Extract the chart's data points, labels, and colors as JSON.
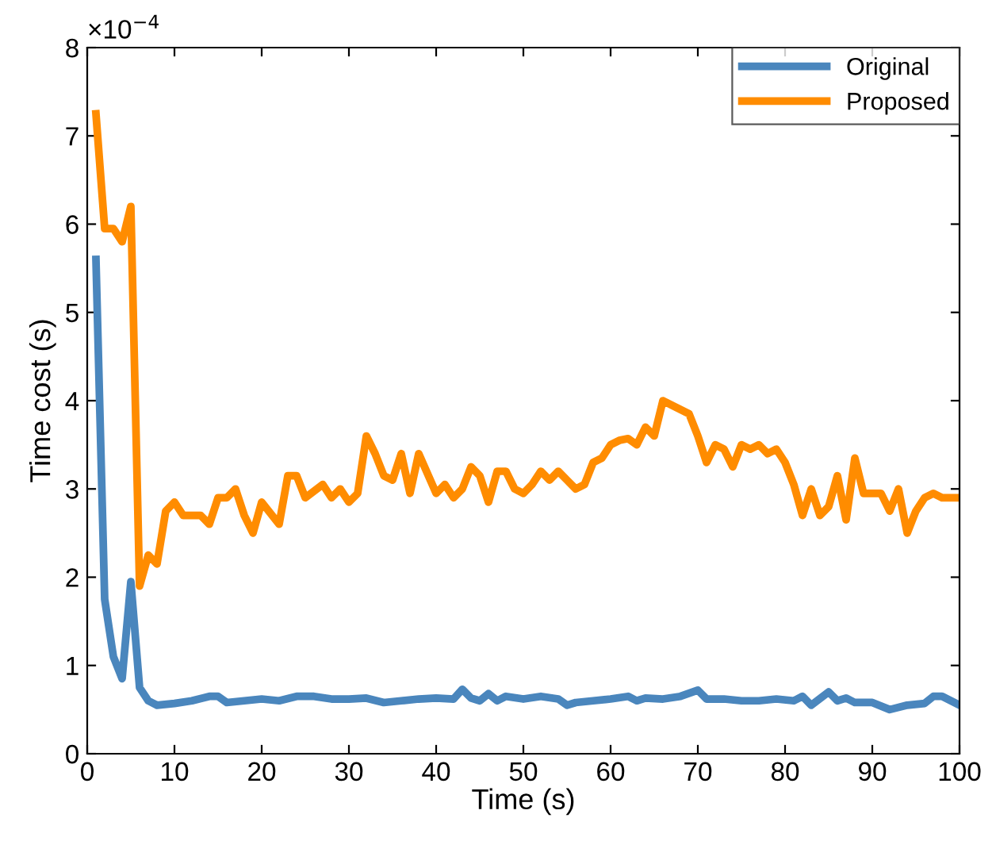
{
  "chart_data": {
    "type": "line",
    "xlabel": "Time (s)",
    "ylabel": "Time cost (s)",
    "annotations": [
      "×10$^{−4}$"
    ],
    "xlim": [
      0,
      100
    ],
    "ylim": [
      0,
      8
    ],
    "xticks": [
      0,
      10,
      20,
      30,
      40,
      50,
      60,
      70,
      80,
      90,
      100
    ],
    "yticks": [
      0,
      1,
      2,
      3,
      4,
      5,
      6,
      7,
      8
    ],
    "grid": false,
    "legend": "top right",
    "marker": "none",
    "line_style": "solid",
    "series": [
      {
        "name": "Original",
        "color": "#4a86bd",
        "x": [
          1,
          2,
          3,
          4,
          5,
          6,
          7,
          8,
          10,
          12,
          14,
          15,
          16,
          18,
          20,
          22,
          24,
          26,
          28,
          30,
          32,
          34,
          36,
          38,
          40,
          42,
          43,
          44,
          45,
          46,
          47,
          48,
          50,
          52,
          54,
          55,
          56,
          58,
          60,
          62,
          63,
          64,
          66,
          68,
          70,
          71,
          73,
          75,
          77,
          79,
          81,
          82,
          83,
          85,
          86,
          87,
          88,
          90,
          92,
          94,
          96,
          97,
          98,
          100
        ],
        "values": [
          5.6,
          1.75,
          1.1,
          0.85,
          1.95,
          0.75,
          0.6,
          0.55,
          0.57,
          0.6,
          0.65,
          0.65,
          0.58,
          0.6,
          0.62,
          0.6,
          0.65,
          0.65,
          0.62,
          0.62,
          0.63,
          0.58,
          0.6,
          0.62,
          0.63,
          0.62,
          0.73,
          0.63,
          0.6,
          0.68,
          0.6,
          0.65,
          0.62,
          0.65,
          0.62,
          0.55,
          0.58,
          0.6,
          0.62,
          0.65,
          0.6,
          0.63,
          0.62,
          0.65,
          0.72,
          0.62,
          0.62,
          0.6,
          0.6,
          0.62,
          0.6,
          0.65,
          0.55,
          0.7,
          0.6,
          0.63,
          0.58,
          0.58,
          0.5,
          0.55,
          0.57,
          0.65,
          0.65,
          0.55
        ]
      },
      {
        "name": "Proposed",
        "color": "#ff8c00",
        "x": [
          1,
          2,
          3,
          4,
          5,
          6,
          7,
          8,
          9,
          10,
          11,
          13,
          14,
          15,
          16,
          17,
          18,
          19,
          20,
          22,
          23,
          24,
          25,
          27,
          28,
          29,
          30,
          31,
          32,
          33,
          34,
          35,
          36,
          37,
          38,
          40,
          41,
          42,
          43,
          44,
          45,
          46,
          47,
          48,
          49,
          50,
          51,
          52,
          53,
          54,
          55,
          56,
          57,
          58,
          59,
          60,
          61,
          62,
          63,
          64,
          65,
          66,
          67,
          68,
          69,
          70,
          71,
          72,
          73,
          74,
          75,
          76,
          77,
          78,
          79,
          80,
          81,
          82,
          83,
          84,
          85,
          86,
          87,
          88,
          89,
          91,
          92,
          93,
          94,
          95,
          96,
          97,
          98,
          99,
          100
        ],
        "values": [
          7.25,
          5.95,
          5.95,
          5.8,
          6.2,
          1.9,
          2.25,
          2.15,
          2.75,
          2.85,
          2.7,
          2.7,
          2.6,
          2.9,
          2.9,
          3.0,
          2.7,
          2.5,
          2.85,
          2.6,
          3.15,
          3.15,
          2.9,
          3.05,
          2.9,
          3.0,
          2.85,
          2.95,
          3.6,
          3.4,
          3.15,
          3.1,
          3.4,
          2.95,
          3.4,
          2.95,
          3.05,
          2.9,
          3.0,
          3.25,
          3.15,
          2.85,
          3.2,
          3.2,
          3.0,
          2.95,
          3.05,
          3.2,
          3.1,
          3.2,
          3.1,
          3.0,
          3.05,
          3.3,
          3.35,
          3.5,
          3.55,
          3.57,
          3.5,
          3.7,
          3.6,
          4.0,
          3.95,
          3.9,
          3.85,
          3.6,
          3.3,
          3.5,
          3.45,
          3.25,
          3.5,
          3.45,
          3.5,
          3.4,
          3.45,
          3.3,
          3.05,
          2.7,
          3.0,
          2.7,
          2.8,
          3.15,
          2.65,
          3.35,
          2.95,
          2.95,
          2.75,
          3.0,
          2.5,
          2.75,
          2.9,
          2.95,
          2.9,
          2.9,
          2.9
        ]
      }
    ]
  }
}
